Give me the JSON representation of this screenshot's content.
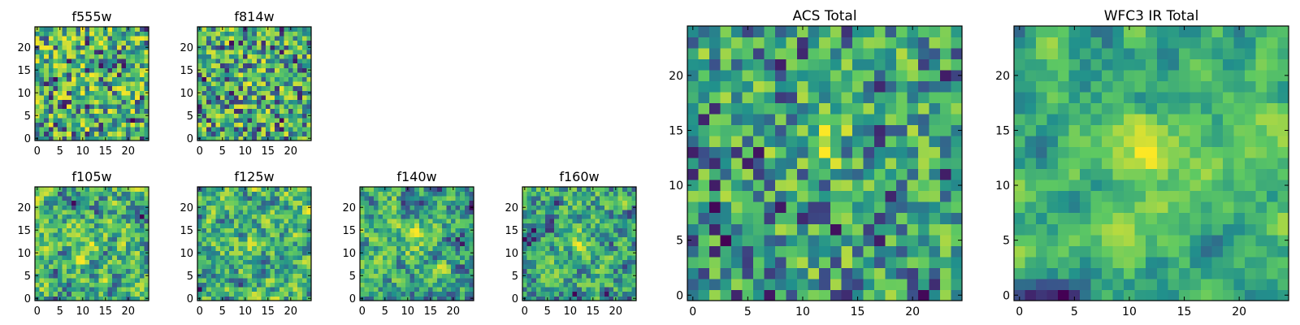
{
  "chart_data": [
    {
      "type": "heatmap",
      "title": "f555w",
      "grid_size": 25,
      "xlim": [
        -0.5,
        24.5
      ],
      "ylim": [
        -0.5,
        24.5
      ],
      "xticks": [
        0,
        5,
        10,
        15,
        20
      ],
      "yticks": [
        0,
        5,
        10,
        15,
        20
      ],
      "colormap": "viridis",
      "origin": "lower",
      "seed": 11,
      "smooth": 0,
      "peak": [
        12,
        12
      ],
      "peak_strength": 0.05
    },
    {
      "type": "heatmap",
      "title": "f814w",
      "grid_size": 25,
      "xlim": [
        -0.5,
        24.5
      ],
      "ylim": [
        -0.5,
        24.5
      ],
      "xticks": [
        0,
        5,
        10,
        15,
        20
      ],
      "yticks": [
        0,
        5,
        10,
        15,
        20
      ],
      "colormap": "viridis",
      "origin": "lower",
      "seed": 23,
      "smooth": 0,
      "peak": [
        12,
        13
      ],
      "peak_strength": 0.15
    },
    {
      "type": "heatmap",
      "title": "f105w",
      "grid_size": 25,
      "xlim": [
        -0.5,
        24.5
      ],
      "ylim": [
        -0.5,
        24.5
      ],
      "xticks": [
        0,
        5,
        10,
        15,
        20
      ],
      "yticks": [
        0,
        5,
        10,
        15,
        20
      ],
      "colormap": "viridis",
      "origin": "lower",
      "seed": 37,
      "smooth": 1,
      "peak": [
        11,
        11
      ],
      "peak_strength": 0.15
    },
    {
      "type": "heatmap",
      "title": "f125w",
      "grid_size": 25,
      "xlim": [
        -0.5,
        24.5
      ],
      "ylim": [
        -0.5,
        24.5
      ],
      "xticks": [
        0,
        5,
        10,
        15,
        20
      ],
      "yticks": [
        0,
        5,
        10,
        15,
        20
      ],
      "colormap": "viridis",
      "origin": "lower",
      "seed": 41,
      "smooth": 1,
      "peak": [
        12,
        13
      ],
      "peak_strength": 0.15
    },
    {
      "type": "heatmap",
      "title": "f140w",
      "grid_size": 25,
      "xlim": [
        -0.5,
        24.5
      ],
      "ylim": [
        -0.5,
        24.5
      ],
      "xticks": [
        0,
        5,
        10,
        15,
        20
      ],
      "yticks": [
        0,
        5,
        10,
        15,
        20
      ],
      "colormap": "viridis",
      "origin": "lower",
      "seed": 53,
      "smooth": 1,
      "peak": [
        12,
        13
      ],
      "peak_strength": 0.2
    },
    {
      "type": "heatmap",
      "title": "f160w",
      "grid_size": 25,
      "xlim": [
        -0.5,
        24.5
      ],
      "ylim": [
        -0.5,
        24.5
      ],
      "xticks": [
        0,
        5,
        10,
        15,
        20
      ],
      "yticks": [
        0,
        5,
        10,
        15,
        20
      ],
      "colormap": "viridis",
      "origin": "lower",
      "seed": 67,
      "smooth": 1,
      "peak": [
        11,
        13
      ],
      "peak_strength": 0.2
    },
    {
      "type": "heatmap",
      "title": "ACS Total",
      "grid_size": 25,
      "xlim": [
        -0.5,
        24.5
      ],
      "ylim": [
        -0.5,
        24.5
      ],
      "xticks": [
        0,
        5,
        10,
        15,
        20
      ],
      "yticks": [
        0,
        5,
        10,
        15,
        20
      ],
      "colormap": "viridis",
      "origin": "lower",
      "seed": 79,
      "smooth": 0,
      "peak": [
        12,
        14
      ],
      "peak_strength": 0.25
    },
    {
      "type": "heatmap",
      "title": "WFC3 IR Total",
      "grid_size": 25,
      "xlim": [
        -0.5,
        24.5
      ],
      "ylim": [
        -0.5,
        24.5
      ],
      "xticks": [
        0,
        5,
        10,
        15,
        20
      ],
      "yticks": [
        0,
        5,
        10,
        15,
        20
      ],
      "colormap": "viridis",
      "origin": "lower",
      "seed": 97,
      "smooth": 2,
      "peak": [
        12,
        13
      ],
      "peak_strength": 0.3
    }
  ],
  "colors": {
    "viridis_stops": [
      "#440154",
      "#3b528b",
      "#21918c",
      "#5ec962",
      "#fde725"
    ],
    "axes": "#000000",
    "background": "#ffffff"
  }
}
